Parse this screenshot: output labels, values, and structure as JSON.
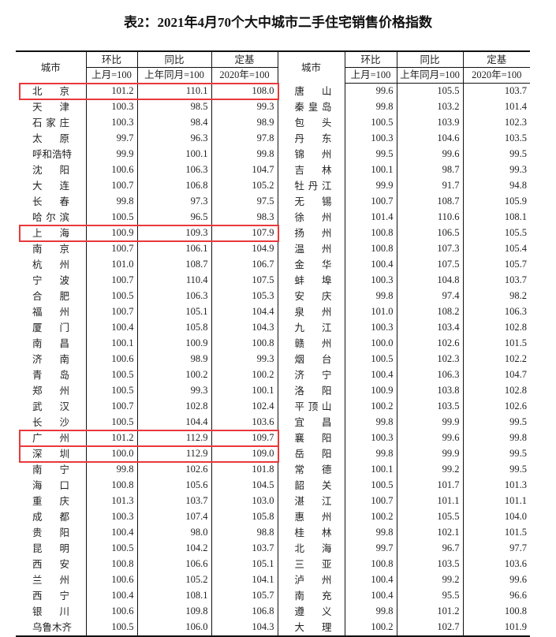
{
  "title": "表2：2021年4月70个大中城市二手住宅销售价格指数",
  "header": {
    "city": "城市",
    "mom": "环比",
    "mom_base": "上月=100",
    "yoy": "同比",
    "yoy_base": "上年同月=100",
    "fixed": "定基",
    "fixed_base": "2020年=100"
  },
  "highlight_color": "#e8393b",
  "left_rows": [
    {
      "city": "北京",
      "mom": "101.2",
      "yoy": "110.1",
      "fixed": "108.0",
      "highlight": true
    },
    {
      "city": "天津",
      "mom": "100.3",
      "yoy": "98.5",
      "fixed": "99.3"
    },
    {
      "city": "石家庄",
      "mom": "100.3",
      "yoy": "98.4",
      "fixed": "98.9"
    },
    {
      "city": "太原",
      "mom": "99.7",
      "yoy": "96.3",
      "fixed": "97.8"
    },
    {
      "city": "呼和浩特",
      "mom": "99.9",
      "yoy": "100.1",
      "fixed": "99.8"
    },
    {
      "city": "沈阳",
      "mom": "100.6",
      "yoy": "106.3",
      "fixed": "104.7"
    },
    {
      "city": "大连",
      "mom": "100.7",
      "yoy": "106.8",
      "fixed": "105.2"
    },
    {
      "city": "长春",
      "mom": "99.8",
      "yoy": "97.3",
      "fixed": "97.5"
    },
    {
      "city": "哈尔滨",
      "mom": "100.5",
      "yoy": "96.5",
      "fixed": "98.3"
    },
    {
      "city": "上海",
      "mom": "100.9",
      "yoy": "109.3",
      "fixed": "107.9",
      "highlight": true
    },
    {
      "city": "南京",
      "mom": "100.7",
      "yoy": "106.1",
      "fixed": "104.9"
    },
    {
      "city": "杭州",
      "mom": "101.0",
      "yoy": "108.7",
      "fixed": "106.7"
    },
    {
      "city": "宁波",
      "mom": "100.7",
      "yoy": "110.4",
      "fixed": "107.5"
    },
    {
      "city": "合肥",
      "mom": "100.5",
      "yoy": "106.3",
      "fixed": "105.3"
    },
    {
      "city": "福州",
      "mom": "100.7",
      "yoy": "105.1",
      "fixed": "104.4"
    },
    {
      "city": "厦门",
      "mom": "100.4",
      "yoy": "105.8",
      "fixed": "104.3"
    },
    {
      "city": "南昌",
      "mom": "100.1",
      "yoy": "100.9",
      "fixed": "100.8"
    },
    {
      "city": "济南",
      "mom": "100.6",
      "yoy": "98.9",
      "fixed": "99.3"
    },
    {
      "city": "青岛",
      "mom": "100.5",
      "yoy": "100.2",
      "fixed": "100.2"
    },
    {
      "city": "郑州",
      "mom": "100.5",
      "yoy": "99.3",
      "fixed": "100.1"
    },
    {
      "city": "武汉",
      "mom": "100.7",
      "yoy": "102.8",
      "fixed": "102.4"
    },
    {
      "city": "长沙",
      "mom": "100.5",
      "yoy": "104.4",
      "fixed": "103.6"
    },
    {
      "city": "广州",
      "mom": "101.2",
      "yoy": "112.9",
      "fixed": "109.7",
      "highlight": true
    },
    {
      "city": "深圳",
      "mom": "100.0",
      "yoy": "112.9",
      "fixed": "109.0",
      "highlight": true
    },
    {
      "city": "南宁",
      "mom": "99.8",
      "yoy": "102.6",
      "fixed": "101.8"
    },
    {
      "city": "海口",
      "mom": "100.8",
      "yoy": "105.6",
      "fixed": "104.5"
    },
    {
      "city": "重庆",
      "mom": "101.3",
      "yoy": "103.7",
      "fixed": "103.0"
    },
    {
      "city": "成都",
      "mom": "100.3",
      "yoy": "107.4",
      "fixed": "105.8"
    },
    {
      "city": "贵阳",
      "mom": "100.4",
      "yoy": "98.0",
      "fixed": "98.8"
    },
    {
      "city": "昆明",
      "mom": "100.5",
      "yoy": "104.2",
      "fixed": "103.7"
    },
    {
      "city": "西安",
      "mom": "100.8",
      "yoy": "106.6",
      "fixed": "105.1"
    },
    {
      "city": "兰州",
      "mom": "100.6",
      "yoy": "105.2",
      "fixed": "104.1"
    },
    {
      "city": "西宁",
      "mom": "100.4",
      "yoy": "108.1",
      "fixed": "105.7"
    },
    {
      "city": "银川",
      "mom": "100.6",
      "yoy": "109.8",
      "fixed": "106.8"
    },
    {
      "city": "乌鲁木齐",
      "mom": "100.5",
      "yoy": "106.0",
      "fixed": "104.3"
    }
  ],
  "right_rows": [
    {
      "city": "唐山",
      "mom": "99.6",
      "yoy": "105.5",
      "fixed": "103.7"
    },
    {
      "city": "秦皇岛",
      "mom": "99.8",
      "yoy": "103.2",
      "fixed": "101.4"
    },
    {
      "city": "包头",
      "mom": "100.5",
      "yoy": "103.9",
      "fixed": "102.3"
    },
    {
      "city": "丹东",
      "mom": "100.3",
      "yoy": "104.6",
      "fixed": "103.5"
    },
    {
      "city": "锦州",
      "mom": "99.5",
      "yoy": "99.6",
      "fixed": "99.5"
    },
    {
      "city": "吉林",
      "mom": "100.1",
      "yoy": "98.7",
      "fixed": "99.3"
    },
    {
      "city": "牡丹江",
      "mom": "99.9",
      "yoy": "91.7",
      "fixed": "94.8"
    },
    {
      "city": "无锡",
      "mom": "100.7",
      "yoy": "108.7",
      "fixed": "105.9"
    },
    {
      "city": "徐州",
      "mom": "101.4",
      "yoy": "110.6",
      "fixed": "108.1"
    },
    {
      "city": "扬州",
      "mom": "100.8",
      "yoy": "106.5",
      "fixed": "105.5"
    },
    {
      "city": "温州",
      "mom": "100.8",
      "yoy": "107.3",
      "fixed": "105.4"
    },
    {
      "city": "金华",
      "mom": "100.4",
      "yoy": "107.5",
      "fixed": "105.7"
    },
    {
      "city": "蚌埠",
      "mom": "100.3",
      "yoy": "104.8",
      "fixed": "103.7"
    },
    {
      "city": "安庆",
      "mom": "99.8",
      "yoy": "97.4",
      "fixed": "98.2"
    },
    {
      "city": "泉州",
      "mom": "101.0",
      "yoy": "108.2",
      "fixed": "106.3"
    },
    {
      "city": "九江",
      "mom": "100.3",
      "yoy": "103.4",
      "fixed": "102.8"
    },
    {
      "city": "赣州",
      "mom": "100.0",
      "yoy": "102.6",
      "fixed": "101.5"
    },
    {
      "city": "烟台",
      "mom": "100.5",
      "yoy": "102.3",
      "fixed": "102.2"
    },
    {
      "city": "济宁",
      "mom": "100.4",
      "yoy": "106.3",
      "fixed": "104.7"
    },
    {
      "city": "洛阳",
      "mom": "100.9",
      "yoy": "103.8",
      "fixed": "102.8"
    },
    {
      "city": "平顶山",
      "mom": "100.2",
      "yoy": "103.5",
      "fixed": "102.6"
    },
    {
      "city": "宜昌",
      "mom": "99.8",
      "yoy": "99.9",
      "fixed": "99.5"
    },
    {
      "city": "襄阳",
      "mom": "100.3",
      "yoy": "99.6",
      "fixed": "99.8"
    },
    {
      "city": "岳阳",
      "mom": "99.8",
      "yoy": "99.9",
      "fixed": "99.5"
    },
    {
      "city": "常德",
      "mom": "100.1",
      "yoy": "99.2",
      "fixed": "99.5"
    },
    {
      "city": "韶关",
      "mom": "100.5",
      "yoy": "101.7",
      "fixed": "101.3"
    },
    {
      "city": "湛江",
      "mom": "100.7",
      "yoy": "101.1",
      "fixed": "101.1"
    },
    {
      "city": "惠州",
      "mom": "100.2",
      "yoy": "105.5",
      "fixed": "104.0"
    },
    {
      "city": "桂林",
      "mom": "99.8",
      "yoy": "102.1",
      "fixed": "101.5"
    },
    {
      "city": "北海",
      "mom": "99.7",
      "yoy": "96.7",
      "fixed": "97.7"
    },
    {
      "city": "三亚",
      "mom": "100.8",
      "yoy": "103.5",
      "fixed": "103.6"
    },
    {
      "city": "泸州",
      "mom": "100.4",
      "yoy": "99.2",
      "fixed": "99.6"
    },
    {
      "city": "南充",
      "mom": "100.4",
      "yoy": "95.5",
      "fixed": "96.6"
    },
    {
      "city": "遵义",
      "mom": "99.8",
      "yoy": "101.2",
      "fixed": "100.8"
    },
    {
      "city": "大理",
      "mom": "100.2",
      "yoy": "102.7",
      "fixed": "101.9"
    }
  ]
}
